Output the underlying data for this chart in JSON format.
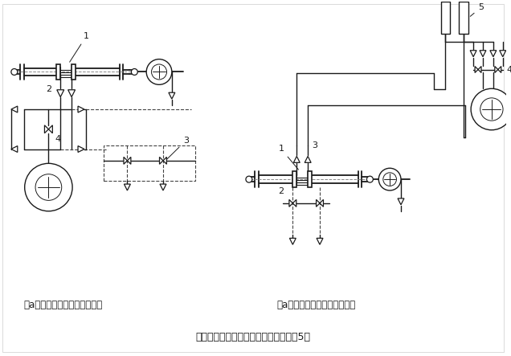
{
  "title": "测量无腐蚀液体流量的安装示意图（图5）",
  "label_left": "（a）差压计装在节流装置下方",
  "label_right": "（a）差压计装在节流装置上方",
  "bg_color": "#ffffff",
  "line_color": "#1a1a1a",
  "dashed_color": "#444444",
  "title_fontsize": 9,
  "label_fontsize": 8.5
}
